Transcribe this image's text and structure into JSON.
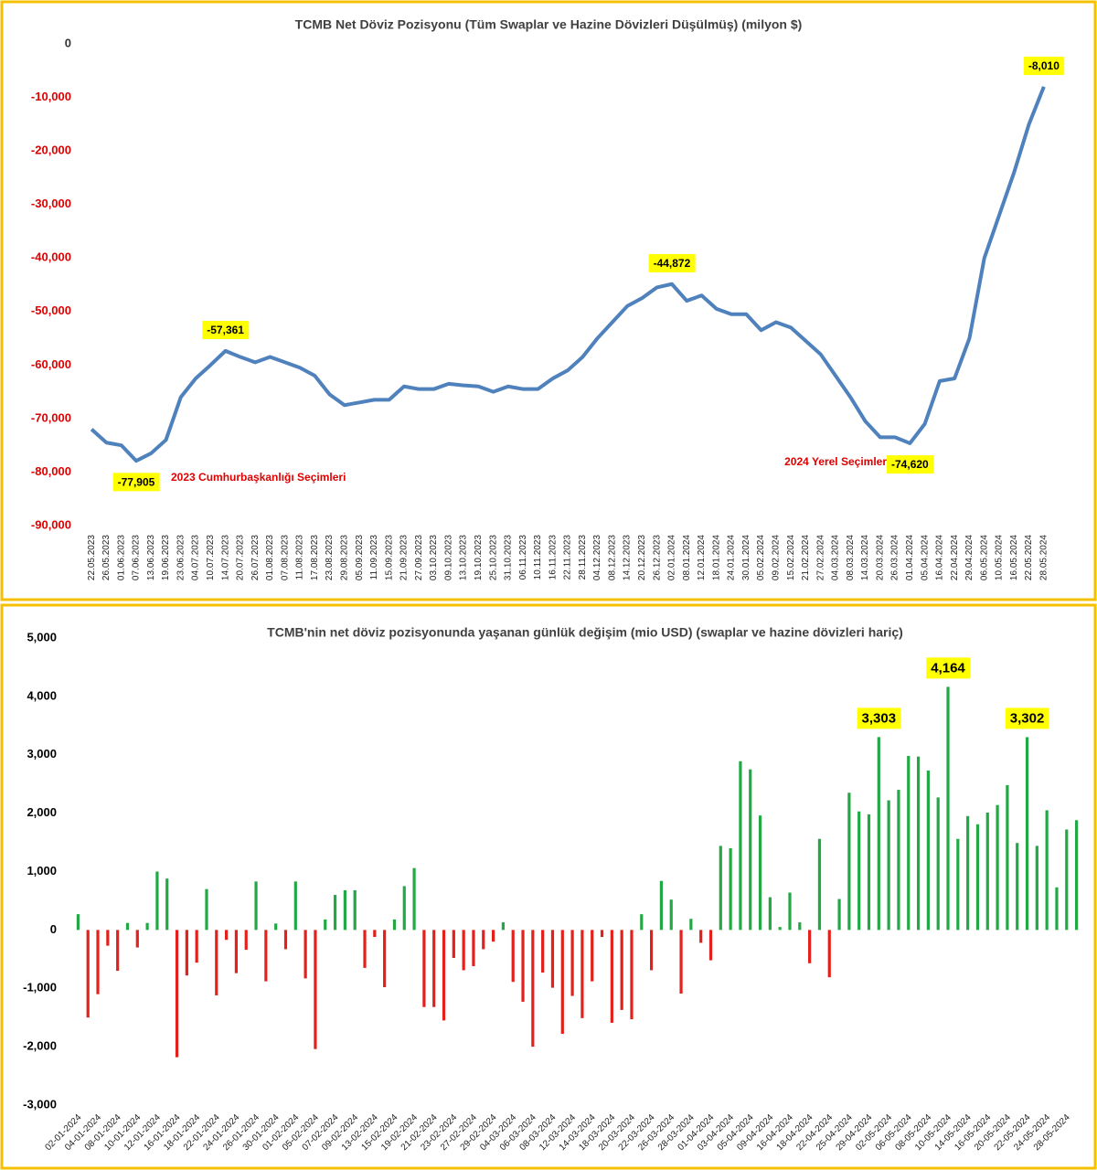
{
  "chart_data": [
    {
      "type": "line",
      "title": "TCMB Net Döviz Pozisyonu (Tüm Swaplar ve Hazine Dövizleri Düşülmüş) (milyon $)",
      "categories": [
        "22.05.2023",
        "26.05.2023",
        "01.06.2023",
        "07.06.2023",
        "13.06.2023",
        "19.06.2023",
        "23.06.2023",
        "04.07.2023",
        "10.07.2023",
        "14.07.2023",
        "20.07.2023",
        "26.07.2023",
        "01.08.2023",
        "07.08.2023",
        "11.08.2023",
        "17.08.2023",
        "23.08.2023",
        "29.08.2023",
        "05.09.2023",
        "11.09.2023",
        "15.09.2023",
        "21.09.2023",
        "27.09.2023",
        "03.10.2023",
        "09.10.2023",
        "13.10.2023",
        "19.10.2023",
        "25.10.2023",
        "31.10.2023",
        "06.11.2023",
        "10.11.2023",
        "16.11.2023",
        "22.11.2023",
        "28.11.2023",
        "04.12.2023",
        "08.12.2023",
        "14.12.2023",
        "20.12.2023",
        "26.12.2023",
        "02.01.2024",
        "08.01.2024",
        "12.01.2024",
        "18.01.2024",
        "24.01.2024",
        "30.01.2024",
        "05.02.2024",
        "09.02.2024",
        "15.02.2024",
        "21.02.2024",
        "27.02.2024",
        "04.03.2024",
        "08.03.2024",
        "14.03.2024",
        "20.03.2024",
        "26.03.2024",
        "01.04.2024",
        "05.04.2024",
        "16.04.2024",
        "22.04.2024",
        "29.04.2024",
        "06.05.2024",
        "10.05.2024",
        "16.05.2024",
        "22.05.2024",
        "28.05.2024"
      ],
      "series": [
        {
          "color": "#4f81bd",
          "values": [
            -72000,
            -74500,
            -75000,
            -77905,
            -76500,
            -74000,
            -66000,
            -62500,
            -60000,
            -57361,
            -58500,
            -59500,
            -58500,
            -59500,
            -60500,
            -62000,
            -65500,
            -67500,
            -67000,
            -66500,
            -66500,
            -64000,
            -64500,
            -64500,
            -63500,
            -63800,
            -64000,
            -65000,
            -64000,
            -64500,
            -64500,
            -62500,
            -61000,
            -58500,
            -55000,
            -52000,
            -49000,
            -47500,
            -45500,
            -44872,
            -48000,
            -47000,
            -49500,
            -50500,
            -50500,
            -53500,
            -52000,
            -53000,
            -55500,
            -58000,
            -62000,
            -66000,
            -70500,
            -73500,
            -73500,
            -74620,
            -71000,
            -63000,
            -62500,
            -55000,
            -40000,
            -32000,
            -24000,
            -15000,
            -8010
          ],
          "value_labels": [
            null,
            null,
            null,
            "-77,905",
            null,
            null,
            null,
            null,
            null,
            "-57,361",
            null,
            null,
            null,
            null,
            null,
            null,
            null,
            null,
            null,
            null,
            null,
            null,
            null,
            null,
            null,
            null,
            null,
            null,
            null,
            null,
            null,
            null,
            null,
            null,
            null,
            null,
            null,
            null,
            null,
            "-44,872",
            null,
            null,
            null,
            null,
            null,
            null,
            null,
            null,
            null,
            null,
            null,
            null,
            null,
            null,
            null,
            "-74,620",
            null,
            null,
            null,
            null,
            null,
            null,
            null,
            null,
            "-8,010"
          ]
        }
      ],
      "ylim": [
        -90000,
        0
      ],
      "yticks": [
        0,
        {
          "value": -10000,
          "label": "-10,000"
        },
        {
          "value": -20000,
          "label": "-20,000"
        },
        {
          "value": -30000,
          "label": "-30,000"
        },
        {
          "value": -40000,
          "label": "-40,000"
        },
        {
          "value": -50000,
          "label": "-50,000"
        },
        {
          "value": -60000,
          "label": "-60,000"
        },
        {
          "value": -70000,
          "label": "-70,000"
        },
        {
          "value": -80000,
          "label": "-80,000"
        },
        {
          "value": -90000,
          "label": "-90,000"
        }
      ],
      "tick_color": "#e00000",
      "annotations": [
        "2023 Cumhurbaşkanlığı Seçimleri",
        "2024 Yerel Seçimler"
      ],
      "annotation_color": "#e00000"
    },
    {
      "type": "bar",
      "title": "TCMB'nin net döviz pozisyonunda yaşanan günlük değişim (mio USD) (swaplar ve hazine dövizleri hariç)",
      "categories": [
        "02-01-2024",
        null,
        "04-01-2024",
        null,
        "08-01-2024",
        null,
        "10-01-2024",
        null,
        "12-01-2024",
        null,
        "16-01-2024",
        null,
        "18-01-2024",
        null,
        "22-01-2024",
        null,
        "24-01-2024",
        null,
        "26-01-2024",
        null,
        "30-01-2024",
        null,
        "01-02-2024",
        null,
        "05-02-2024",
        null,
        "07-02-2024",
        null,
        "09-02-2024",
        null,
        "13-02-2024",
        null,
        "15-02-2024",
        null,
        "19-02-2024",
        null,
        "21-02-2024",
        null,
        "23-02-2024",
        null,
        "27-02-2024",
        null,
        "29-02-2024",
        null,
        "04-03-2024",
        null,
        "06-03-2024",
        null,
        "08-03-2024",
        null,
        "12-03-2024",
        null,
        "14-03-2024",
        null,
        "18-03-2024",
        null,
        "20-03-2024",
        null,
        "22-03-2024",
        null,
        "26-03-2024",
        null,
        "28-03-2024",
        null,
        "01-04-2024",
        null,
        "03-04-2024",
        null,
        "05-04-2024",
        null,
        "09-04-2024",
        null,
        "16-04-2024",
        null,
        "18-04-2024",
        null,
        "22-04-2024",
        null,
        "25-04-2024",
        null,
        "29-04-2024",
        null,
        "02-05-2024",
        null,
        "06-05-2024",
        null,
        "08-05-2024",
        null,
        "10-05-2024",
        null,
        "14-05-2024",
        null,
        "16-05-2024",
        null,
        "20-05-2024",
        null,
        "22-05-2024",
        null,
        "24-05-2024",
        null,
        "28-05-2024",
        null
      ],
      "values": [
        270,
        -1500,
        -1100,
        -270,
        -700,
        120,
        -300,
        120,
        1000,
        880,
        -2180,
        -780,
        -560,
        700,
        -1120,
        -170,
        -740,
        -340,
        830,
        -880,
        110,
        -330,
        830,
        -830,
        -2040,
        180,
        600,
        680,
        680,
        -650,
        -120,
        -980,
        180,
        750,
        1060,
        -1320,
        -1320,
        -1550,
        -480,
        -690,
        -620,
        -330,
        -200,
        130,
        -890,
        -1230,
        -2000,
        -730,
        -990,
        -1780,
        -1130,
        -1510,
        -880,
        -120,
        -1590,
        -1370,
        -1530,
        270,
        -690,
        840,
        520,
        -1090,
        190,
        -220,
        -520,
        1440,
        1400,
        2890,
        2750,
        1960,
        560,
        50,
        640,
        130,
        -570,
        1560,
        -810,
        530,
        2350,
        2030,
        1980,
        3303,
        2220,
        2400,
        2980,
        2970,
        2730,
        2270,
        4164,
        1560,
        1950,
        1810,
        2010,
        2140,
        2480,
        1490,
        3302,
        1440,
        2050,
        730,
        1720,
        1880
      ],
      "value_labels": [
        null,
        null,
        null,
        null,
        null,
        null,
        null,
        null,
        null,
        null,
        null,
        null,
        null,
        null,
        null,
        null,
        null,
        null,
        null,
        null,
        null,
        null,
        null,
        null,
        null,
        null,
        null,
        null,
        null,
        null,
        null,
        null,
        null,
        null,
        null,
        null,
        null,
        null,
        null,
        null,
        null,
        null,
        null,
        null,
        null,
        null,
        null,
        null,
        null,
        null,
        null,
        null,
        null,
        null,
        null,
        null,
        null,
        null,
        null,
        null,
        null,
        null,
        null,
        null,
        null,
        null,
        null,
        null,
        null,
        null,
        null,
        null,
        null,
        null,
        null,
        null,
        null,
        null,
        null,
        null,
        null,
        "3,303",
        null,
        null,
        null,
        null,
        null,
        null,
        "4,164",
        null,
        null,
        null,
        null,
        null,
        null,
        null,
        "3,302",
        null,
        null,
        null,
        null,
        null
      ],
      "positive_color": "#22a845",
      "negative_color": "#e3201b",
      "ylim": [
        -3000,
        5000
      ],
      "yticks": [
        {
          "value": -3000,
          "label": "-3,000"
        },
        {
          "value": -2000,
          "label": "-2,000"
        },
        {
          "value": -1000,
          "label": "-1,000"
        },
        0,
        {
          "value": 1000,
          "label": "1,000"
        },
        {
          "value": 2000,
          "label": "2,000"
        },
        {
          "value": 3000,
          "label": "3,000"
        },
        {
          "value": 4000,
          "label": "4,000"
        },
        {
          "value": 5000,
          "label": "5,000"
        }
      ],
      "tick_color": "#000000"
    }
  ]
}
